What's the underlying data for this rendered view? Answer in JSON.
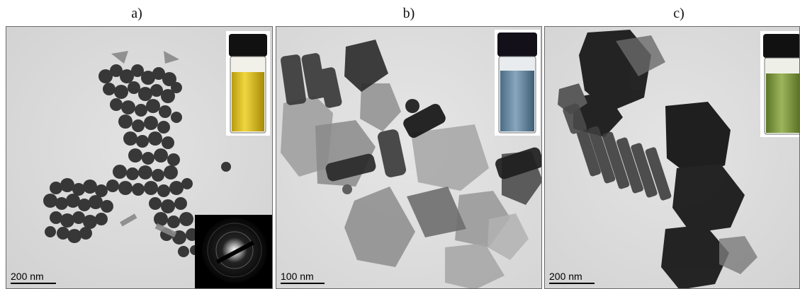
{
  "panels": [
    {
      "label": "a)",
      "scale": "200 nm",
      "vial_color": "#e0c21a"
    },
    {
      "label": "b)",
      "scale": "100 nm",
      "vial_color": "#6f8fa8"
    },
    {
      "label": "c)",
      "scale": "200 nm",
      "vial_color": "#8aa248"
    }
  ]
}
